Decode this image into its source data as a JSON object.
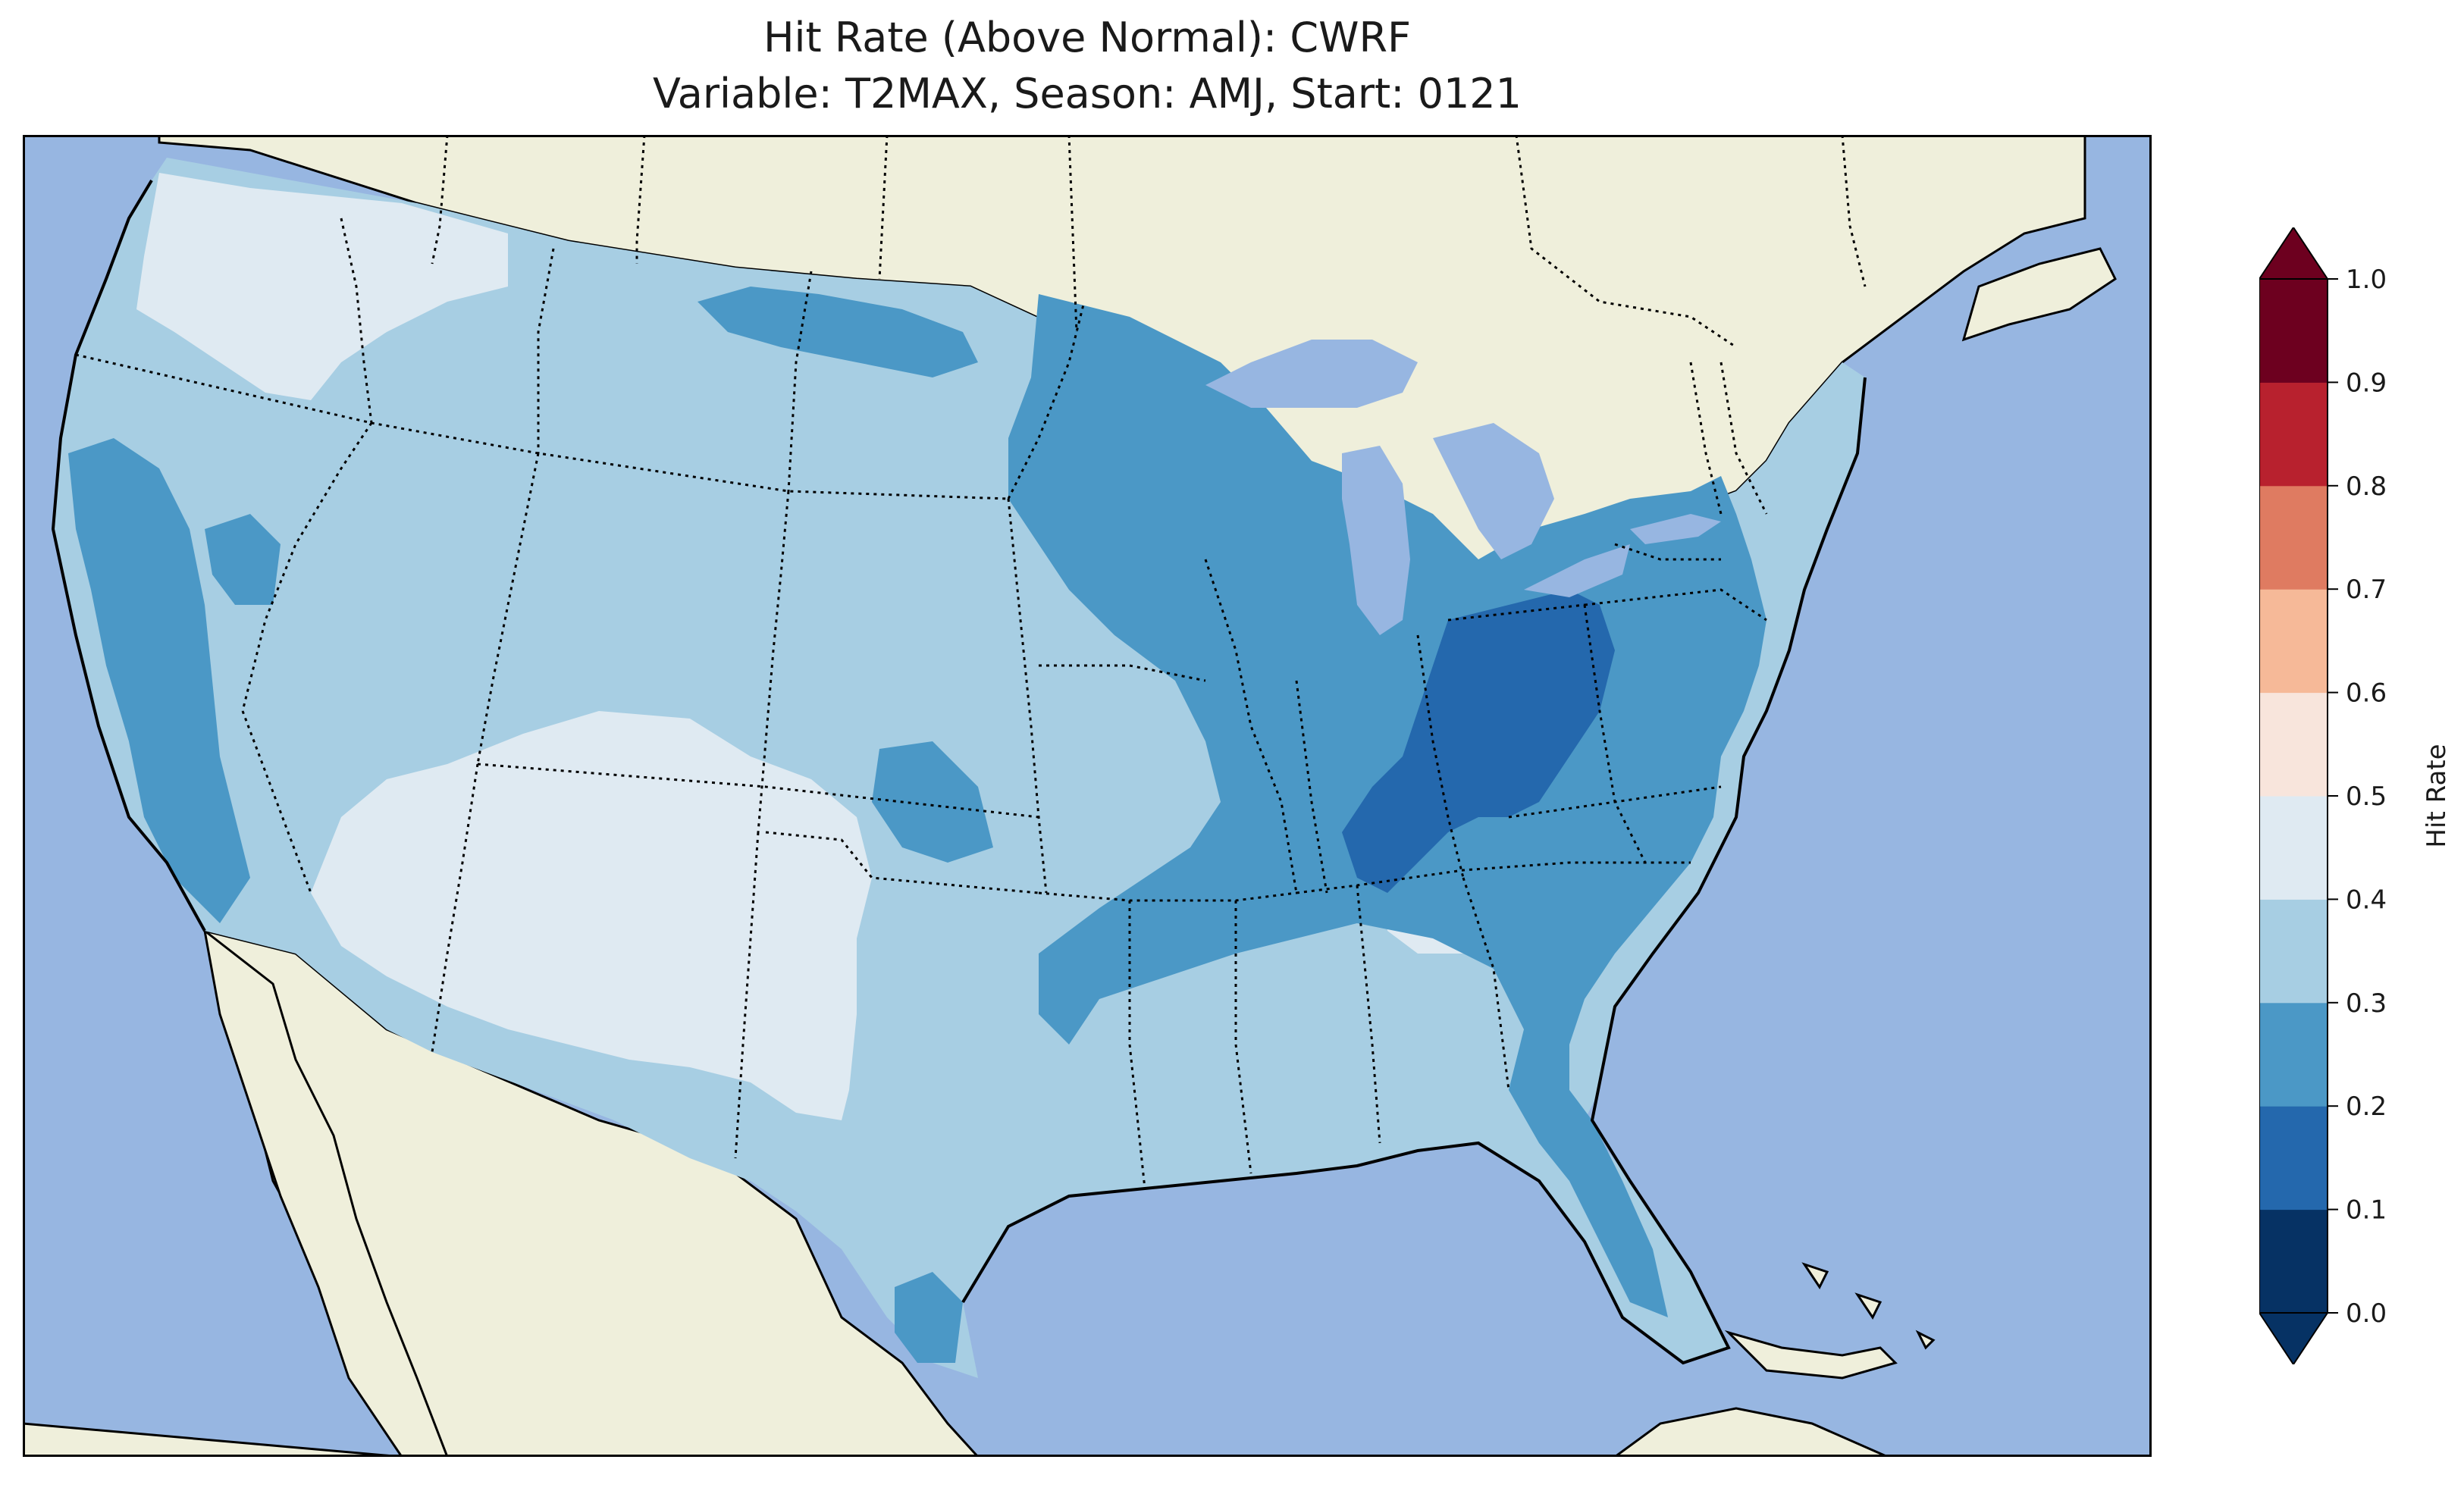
{
  "title": {
    "line1": "Hit Rate (Above Normal): CWRF",
    "line2": "Variable: T2MAX, Season: AMJ, Start: 0121"
  },
  "map": {
    "ocean_color": "#97b6e1",
    "land_color": "#efefdb",
    "lake_color": "#97b6e1",
    "coastline_color": "#000000",
    "border_style": "dotted"
  },
  "colorbar": {
    "label": "Hit Rate",
    "ticks": [
      "0.0",
      "0.1",
      "0.2",
      "0.3",
      "0.4",
      "0.5",
      "0.6",
      "0.7",
      "0.8",
      "0.9",
      "1.0"
    ],
    "colors": [
      "#053061",
      "#2166ac",
      "#4393c3",
      "#92c5de",
      "#d1e5f0",
      "#f7f7f7",
      "#fddbc7",
      "#f4a582",
      "#d6604d",
      "#b2182b",
      "#67001f"
    ],
    "bin_colors": [
      "#063264",
      "#2468ad",
      "#4b98c6",
      "#a7cee3",
      "#dfeaf2",
      "#f8e5dc",
      "#f6b998",
      "#df7b61",
      "#b8212e",
      "#6d001f"
    ],
    "extend": "both"
  }
}
